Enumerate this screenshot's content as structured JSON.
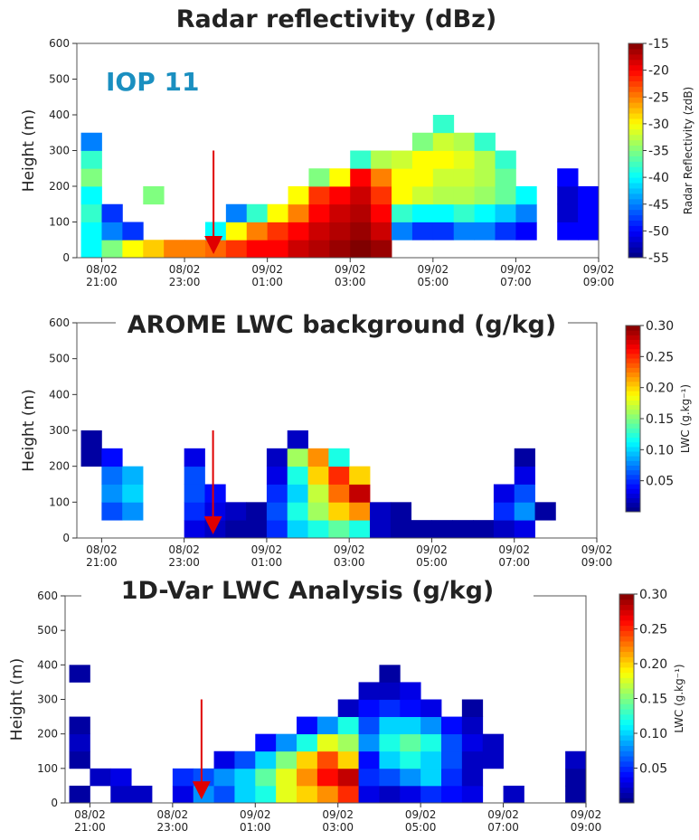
{
  "chart_data": [
    {
      "type": "heatmap",
      "title": "Radar reflectivity (dBz)",
      "annotation": "IOP 11",
      "y_label": "Height (m)",
      "colorbar_label": "Radar Reflectivity (zdB)",
      "colormap": "jet",
      "xlim": [
        20.4,
        33.0
      ],
      "ylim": [
        0,
        600
      ],
      "xticks": [
        {
          "value": 21,
          "label": "08/02\n21:00"
        },
        {
          "value": 23,
          "label": "08/02\n23:00"
        },
        {
          "value": 25,
          "label": "09/02\n01:00"
        },
        {
          "value": 27,
          "label": "09/02\n03:00"
        },
        {
          "value": 29,
          "label": "09/02\n05:00"
        },
        {
          "value": 31,
          "label": "09/02\n07:00"
        },
        {
          "value": 33,
          "label": "09/02\n09:00"
        }
      ],
      "yticks": [
        0,
        100,
        200,
        300,
        400,
        500,
        600
      ],
      "clim": [
        -55,
        -15
      ],
      "cticks": [
        -55,
        -50,
        -45,
        -40,
        -35,
        -30,
        -25,
        -20,
        -15
      ],
      "marker": {
        "x": 23.7,
        "y_from": 300,
        "y_to": 10,
        "color": "#e00000"
      },
      "x_edges": [
        20.5,
        21,
        21.5,
        22,
        22.5,
        23,
        23.5,
        24,
        24.5,
        25,
        25.5,
        26,
        26.5,
        27,
        27.5,
        28,
        28.5,
        29,
        29.5,
        30,
        30.5,
        31,
        31.5,
        32,
        32.5,
        33
      ],
      "y_edges": [
        0,
        50,
        100,
        150,
        200,
        250,
        300,
        350,
        400
      ],
      "values": [
        [
          -40,
          -35,
          -30,
          -28,
          -25,
          -25,
          -24,
          -22,
          -20,
          -20,
          -18,
          -17,
          -16,
          -15,
          -16,
          null,
          null,
          null,
          null,
          null,
          null,
          null,
          null,
          null,
          null
        ],
        [
          -40,
          -45,
          -48,
          null,
          null,
          null,
          -40,
          -30,
          -25,
          -22,
          -20,
          -18,
          -17,
          -16,
          -18,
          -45,
          -48,
          -48,
          -45,
          -45,
          -48,
          -50,
          null,
          -50,
          -50
        ],
        [
          -38,
          -48,
          null,
          null,
          null,
          null,
          null,
          -45,
          -38,
          -30,
          -25,
          -20,
          -18,
          -17,
          -20,
          -38,
          -40,
          -40,
          -38,
          -40,
          -42,
          -45,
          null,
          -52,
          -50
        ],
        [
          -40,
          null,
          null,
          -35,
          null,
          null,
          null,
          null,
          null,
          null,
          -30,
          -22,
          -20,
          -18,
          -22,
          -30,
          -32,
          -33,
          -33,
          -34,
          -36,
          -40,
          null,
          -52,
          -50
        ],
        [
          -35,
          null,
          null,
          null,
          null,
          null,
          null,
          null,
          null,
          null,
          null,
          -35,
          -30,
          -20,
          -25,
          -30,
          -30,
          -32,
          -32,
          -33,
          -36,
          null,
          null,
          -50,
          null
        ],
        [
          -38,
          null,
          null,
          null,
          null,
          null,
          null,
          null,
          null,
          null,
          null,
          null,
          null,
          -38,
          -33,
          -32,
          -30,
          -30,
          -31,
          -33,
          -38,
          null,
          null,
          null,
          null
        ],
        [
          -45,
          null,
          null,
          null,
          null,
          null,
          null,
          null,
          null,
          null,
          null,
          null,
          null,
          null,
          null,
          null,
          -35,
          -32,
          -33,
          -38,
          null,
          null,
          null,
          null,
          null
        ],
        [
          null,
          null,
          null,
          null,
          null,
          null,
          null,
          null,
          null,
          null,
          null,
          null,
          null,
          null,
          null,
          null,
          null,
          -38,
          null,
          null,
          null,
          null,
          null,
          null,
          null
        ]
      ]
    },
    {
      "type": "heatmap",
      "title": "AROME LWC background (g/kg)",
      "y_label": "Height (m)",
      "colorbar_label": "LWC (g.kg⁻¹)",
      "colormap": "jet",
      "xlim": [
        20.4,
        33.0
      ],
      "ylim": [
        0,
        600
      ],
      "xticks": [
        {
          "value": 21,
          "label": "08/02\n21:00"
        },
        {
          "value": 23,
          "label": "08/02\n23:00"
        },
        {
          "value": 25,
          "label": "09/02\n01:00"
        },
        {
          "value": 27,
          "label": "09/02\n03:00"
        },
        {
          "value": 29,
          "label": "09/02\n05:00"
        },
        {
          "value": 31,
          "label": "09/02\n07:00"
        },
        {
          "value": 33,
          "label": "09/02\n09:00"
        }
      ],
      "yticks": [
        0,
        100,
        200,
        300,
        400,
        500,
        600
      ],
      "clim": [
        0,
        0.3
      ],
      "cticks": [
        0.05,
        {
          "value": 0.1,
          "label": "0.10"
        },
        0.15,
        {
          "value": 0.2,
          "label": "0.20"
        },
        0.25,
        {
          "value": 0.3,
          "label": "0.30"
        }
      ],
      "marker": {
        "x": 23.7,
        "y_from": 300,
        "y_to": 10,
        "color": "#e00000"
      },
      "x_edges": [
        20.5,
        21,
        21.5,
        22,
        22.5,
        23,
        23.5,
        24,
        24.5,
        25,
        25.5,
        26,
        26.5,
        27,
        27.5,
        28,
        28.5,
        29,
        29.5,
        30,
        30.5,
        31,
        31.5,
        32,
        32.5,
        33
      ],
      "y_edges": [
        0,
        50,
        100,
        150,
        200,
        250,
        300
      ],
      "values": [
        [
          null,
          null,
          null,
          null,
          null,
          0.03,
          0.02,
          0.01,
          0.01,
          0.05,
          0.1,
          0.12,
          0.14,
          0.12,
          0.02,
          0.01,
          0.01,
          0.01,
          0.01,
          0.01,
          0.02,
          0.03,
          null,
          null,
          null
        ],
        [
          null,
          0.06,
          0.08,
          null,
          null,
          0.05,
          0.03,
          0.02,
          0.01,
          0.06,
          0.12,
          0.16,
          0.2,
          0.22,
          0.02,
          0.01,
          null,
          null,
          null,
          null,
          0.05,
          0.08,
          0.01,
          null,
          null
        ],
        [
          null,
          0.08,
          0.1,
          null,
          null,
          0.06,
          0.04,
          null,
          null,
          0.05,
          0.1,
          0.17,
          0.23,
          0.28,
          null,
          null,
          null,
          null,
          null,
          null,
          0.03,
          0.06,
          null,
          null,
          null
        ],
        [
          null,
          0.07,
          0.09,
          null,
          null,
          0.06,
          null,
          null,
          null,
          0.03,
          0.12,
          0.2,
          0.25,
          0.2,
          null,
          null,
          null,
          null,
          null,
          null,
          null,
          0.03,
          null,
          null,
          null
        ],
        [
          0.01,
          0.04,
          null,
          null,
          null,
          0.03,
          null,
          null,
          null,
          0.02,
          0.16,
          0.22,
          0.12,
          null,
          null,
          null,
          null,
          null,
          null,
          null,
          null,
          0.01,
          null,
          null,
          null
        ],
        [
          0.01,
          null,
          null,
          null,
          null,
          null,
          null,
          null,
          null,
          null,
          0.02,
          null,
          null,
          null,
          null,
          null,
          null,
          null,
          null,
          null,
          null,
          null,
          null,
          null,
          null
        ]
      ]
    },
    {
      "type": "heatmap",
      "title": "1D-Var LWC Analysis (g/kg)",
      "y_label": "Height (m)",
      "colorbar_label": "LWC (g.kg⁻¹)",
      "colormap": "jet",
      "xlim": [
        20.4,
        33.0
      ],
      "ylim": [
        0,
        600
      ],
      "xticks": [
        {
          "value": 21,
          "label": "08/02\n21:00"
        },
        {
          "value": 23,
          "label": "08/02\n23:00"
        },
        {
          "value": 25,
          "label": "09/02\n01:00"
        },
        {
          "value": 27,
          "label": "09/02\n03:00"
        },
        {
          "value": 29,
          "label": "09/02\n05:00"
        },
        {
          "value": 31,
          "label": "09/02\n07:00"
        },
        {
          "value": 33,
          "label": "09/02\n09:00"
        }
      ],
      "yticks": [
        0,
        100,
        200,
        300,
        400,
        500,
        600
      ],
      "clim": [
        0,
        0.3
      ],
      "cticks": [
        0.05,
        {
          "value": 0.1,
          "label": "0.10"
        },
        0.15,
        {
          "value": 0.2,
          "label": "0.20"
        },
        0.25,
        {
          "value": 0.3,
          "label": "0.30"
        }
      ],
      "marker": {
        "x": 23.7,
        "y_from": 300,
        "y_to": 10,
        "color": "#e00000"
      },
      "x_edges": [
        20.5,
        21,
        21.5,
        22,
        22.5,
        23,
        23.5,
        24,
        24.5,
        25,
        25.5,
        26,
        26.5,
        27,
        27.5,
        28,
        28.5,
        29,
        29.5,
        30,
        30.5,
        31,
        31.5,
        32,
        32.5,
        33
      ],
      "y_edges": [
        0,
        50,
        100,
        150,
        200,
        250,
        300,
        350,
        400
      ],
      "values": [
        [
          0.01,
          null,
          0.02,
          0.02,
          null,
          0.03,
          0.08,
          0.06,
          0.1,
          0.12,
          0.18,
          0.2,
          0.22,
          0.25,
          0.03,
          0.02,
          0.03,
          0.05,
          0.04,
          0.03,
          null,
          0.02,
          null,
          null,
          0.01
        ],
        [
          null,
          0.02,
          0.03,
          null,
          null,
          0.05,
          0.06,
          0.08,
          0.1,
          0.14,
          0.18,
          0.22,
          0.26,
          0.28,
          0.05,
          0.06,
          0.08,
          0.1,
          0.05,
          0.02,
          null,
          null,
          null,
          null,
          0.01
        ],
        [
          0.01,
          null,
          null,
          null,
          null,
          null,
          null,
          0.03,
          0.06,
          0.1,
          0.15,
          0.2,
          0.24,
          0.2,
          0.04,
          0.1,
          0.12,
          0.1,
          0.06,
          0.02,
          0.02,
          null,
          null,
          null,
          0.02
        ],
        [
          0.02,
          null,
          null,
          null,
          null,
          null,
          null,
          null,
          null,
          0.04,
          0.08,
          0.12,
          0.18,
          0.16,
          0.08,
          0.12,
          0.14,
          0.12,
          0.06,
          0.03,
          0.02,
          null,
          null,
          null,
          null
        ],
        [
          0.01,
          null,
          null,
          null,
          null,
          null,
          null,
          null,
          null,
          null,
          null,
          0.04,
          0.08,
          0.12,
          0.06,
          0.1,
          0.1,
          0.08,
          0.04,
          0.02,
          null,
          null,
          null,
          null,
          null
        ],
        [
          null,
          null,
          null,
          null,
          null,
          null,
          null,
          null,
          null,
          null,
          null,
          null,
          null,
          0.02,
          0.04,
          0.05,
          0.04,
          0.03,
          null,
          0.01,
          null,
          null,
          null,
          null,
          null
        ],
        [
          null,
          null,
          null,
          null,
          null,
          null,
          null,
          null,
          null,
          null,
          null,
          null,
          null,
          null,
          0.02,
          0.02,
          0.03,
          null,
          null,
          null,
          null,
          null,
          null,
          null,
          null
        ],
        [
          0.01,
          null,
          null,
          null,
          null,
          null,
          null,
          null,
          null,
          null,
          null,
          null,
          null,
          null,
          null,
          0.01,
          null,
          null,
          null,
          null,
          null,
          null,
          null,
          null,
          null
        ]
      ]
    }
  ]
}
